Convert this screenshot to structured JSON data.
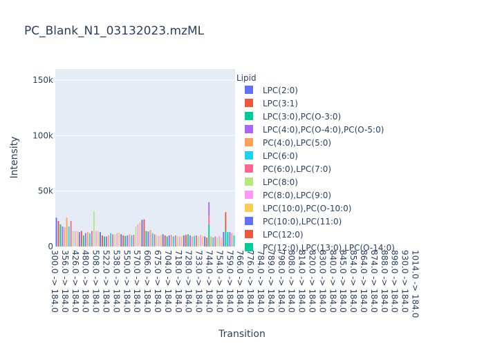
{
  "chart_data": {
    "type": "bar",
    "barmode": "stack",
    "title": "PC_Blank_N1_03132023.mzML",
    "xlabel": "Transition",
    "ylabel": "Intensity",
    "ylim": [
      0,
      160000
    ],
    "yticks": [
      {
        "value": 0,
        "label": "0"
      },
      {
        "value": 50000,
        "label": "50k"
      },
      {
        "value": 100000,
        "label": "100k"
      },
      {
        "value": 150000,
        "label": "150k"
      }
    ],
    "grid": true,
    "legend_title": "Lipid",
    "legend_position": "right",
    "xticks": [
      "300.0 -> 184.0",
      "356.0 -> 184.0",
      "426.0 -> 184.0",
      "480.0 -> 184.0",
      "508.0 -> 184.0",
      "522.0 -> 184.0",
      "538.0 -> 184.0",
      "550.0 -> 184.0",
      "570.0 -> 184.0",
      "606.0 -> 184.0",
      "675.0 -> 184.0",
      "704.0 -> 184.0",
      "718.0 -> 184.0",
      "728.0 -> 184.0",
      "733.0 -> 184.0",
      "744.0 -> 184.0",
      "754.0 -> 184.0",
      "759.0 -> 184.0",
      "766.0 -> 184.0",
      "776.0 -> 184.0",
      "784.0 -> 184.0",
      "789.0 -> 184.0",
      "798.0 -> 184.0",
      "808.0 -> 184.0",
      "814.0 -> 184.0",
      "820.0 -> 184.0",
      "830.0 -> 184.0",
      "840.0 -> 184.0",
      "845.0 -> 184.0",
      "854.0 -> 184.0",
      "864.0 -> 184.0",
      "874.0 -> 184.0",
      "888.0 -> 184.0",
      "898.0 -> 184.0",
      "930.0 -> 184.0",
      "1014.0 -> 184.0"
    ],
    "legend": [
      {
        "name": "LPC(2:0)",
        "color": "#636efa"
      },
      {
        "name": "LPC(3:1)",
        "color": "#EF553B"
      },
      {
        "name": "LPC(3:0),PC(O-3:0)",
        "color": "#00cc96"
      },
      {
        "name": "LPC(4:0),PC(O-4:0),PC(O-5:0)",
        "color": "#ab63fa"
      },
      {
        "name": "PC(4:0),LPC(5:0)",
        "color": "#FFA15A"
      },
      {
        "name": "LPC(6:0)",
        "color": "#19d3f3"
      },
      {
        "name": "PC(6:0),LPC(7:0)",
        "color": "#FF6692"
      },
      {
        "name": "LPC(8:0)",
        "color": "#B6E880"
      },
      {
        "name": "PC(8:0),LPC(9:0)",
        "color": "#FF97FF"
      },
      {
        "name": "LPC(10:0),PC(O-10:0)",
        "color": "#FECB52"
      },
      {
        "name": "PC(10:0),LPC(11:0)",
        "color": "#636efa"
      },
      {
        "name": "LPC(12:0)",
        "color": "#EF553B"
      },
      {
        "name": "PC(12:0),LPC(13:0),LPC(O-14:0)",
        "color": "#00cc96"
      }
    ],
    "palette": [
      "#636efa",
      "#EF553B",
      "#00cc96",
      "#ab63fa",
      "#FFA15A",
      "#19d3f3",
      "#FF6692",
      "#B6E880",
      "#FF97FF",
      "#FECB52"
    ],
    "bars": [
      {
        "value": 26000,
        "color": "#636efa"
      },
      {
        "value": 23000,
        "color": "#EF553B"
      },
      {
        "value": 20000,
        "color": "#00cc96"
      },
      {
        "value": 18000,
        "color": "#ab63fa"
      },
      {
        "value": 17500,
        "color": "#FFA15A"
      },
      {
        "value": 26000,
        "color": "#FFA15A"
      },
      {
        "value": 18000,
        "color": "#19d3f3"
      },
      {
        "value": 23000,
        "color": "#FF6692"
      },
      {
        "value": 14000,
        "color": "#B6E880"
      },
      {
        "value": 14000,
        "color": "#FF97FF"
      },
      {
        "value": 14000,
        "color": "#FECB52"
      },
      {
        "value": 13000,
        "color": "#636efa"
      },
      {
        "value": 14000,
        "color": "#EF553B"
      },
      {
        "value": 10000,
        "color": "#00cc96"
      },
      {
        "value": 12000,
        "color": "#ab63fa"
      },
      {
        "value": 13000,
        "color": "#FFA15A"
      },
      {
        "value": 12000,
        "color": "#19d3f3"
      },
      {
        "value": 14000,
        "color": "#FF6692"
      },
      {
        "value": 32000,
        "color": "#B6E880"
      },
      {
        "value": 14000,
        "color": "#FF97FF"
      },
      {
        "value": 14000,
        "color": "#FECB52"
      },
      {
        "value": 13000,
        "color": "#636efa"
      },
      {
        "value": 10000,
        "color": "#EF553B"
      },
      {
        "value": 9000,
        "color": "#00cc96"
      },
      {
        "value": 9000,
        "color": "#ab63fa"
      },
      {
        "value": 10000,
        "color": "#FFA15A"
      },
      {
        "value": 12000,
        "color": "#19d3f3"
      },
      {
        "value": 11000,
        "color": "#FF6692"
      },
      {
        "value": 11000,
        "color": "#B6E880"
      },
      {
        "value": 12000,
        "color": "#FF97FF"
      },
      {
        "value": 12500,
        "color": "#FECB52"
      },
      {
        "value": 11000,
        "color": "#636efa"
      },
      {
        "value": 10000,
        "color": "#EF553B"
      },
      {
        "value": 9500,
        "color": "#00cc96"
      },
      {
        "value": 10000,
        "color": "#ab63fa"
      },
      {
        "value": 11000,
        "color": "#FFA15A"
      },
      {
        "value": 10000,
        "color": "#19d3f3"
      },
      {
        "value": 10500,
        "color": "#FF6692"
      },
      {
        "value": 18000,
        "color": "#B6E880"
      },
      {
        "value": 20000,
        "color": "#FF97FF"
      },
      {
        "value": 22000,
        "color": "#FECB52"
      },
      {
        "value": 24000,
        "color": "#636efa"
      },
      {
        "value": 24500,
        "color": "#EF553B"
      },
      {
        "value": 14000,
        "color": "#00cc96"
      },
      {
        "value": 13500,
        "color": "#ab63fa"
      },
      {
        "value": 15000,
        "color": "#FFA15A"
      },
      {
        "value": 12000,
        "color": "#19d3f3"
      },
      {
        "value": 11000,
        "color": "#FF6692"
      },
      {
        "value": 10000,
        "color": "#B6E880"
      },
      {
        "value": 9500,
        "color": "#FF97FF"
      },
      {
        "value": 10500,
        "color": "#FECB52"
      },
      {
        "value": 11000,
        "color": "#636efa"
      },
      {
        "value": 10000,
        "color": "#EF553B"
      },
      {
        "value": 9000,
        "color": "#00cc96"
      },
      {
        "value": 10000,
        "color": "#ab63fa"
      },
      {
        "value": 10500,
        "color": "#FFA15A"
      },
      {
        "value": 9000,
        "color": "#19d3f3"
      },
      {
        "value": 10000,
        "color": "#FF6692"
      },
      {
        "value": 9500,
        "color": "#B6E880"
      },
      {
        "value": 9000,
        "color": "#FF97FF"
      },
      {
        "value": 9500,
        "color": "#FECB52"
      },
      {
        "value": 10000,
        "color": "#636efa"
      },
      {
        "value": 10500,
        "color": "#EF553B"
      },
      {
        "value": 11000,
        "color": "#00cc96"
      },
      {
        "value": 10000,
        "color": "#ab63fa"
      },
      {
        "value": 9000,
        "color": "#FFA15A"
      },
      {
        "value": 9500,
        "color": "#19d3f3"
      },
      {
        "value": 10000,
        "color": "#FF6692"
      },
      {
        "value": 9000,
        "color": "#B6E880"
      },
      {
        "value": 10500,
        "color": "#FF97FF"
      },
      {
        "value": 9500,
        "color": "#FECB52"
      },
      {
        "value": 9000,
        "color": "#636efa"
      },
      {
        "value": 8000,
        "color": "#EF553B"
      },
      {
        "value": 40000,
        "color": "#ab63fa",
        "stack": [
          {
            "value": 20000,
            "color": "#00cc96"
          },
          {
            "value": 8000,
            "color": "#FF6692"
          },
          {
            "value": 12000,
            "color": "#ab63fa"
          }
        ]
      },
      {
        "value": 9000,
        "color": "#FFA15A"
      },
      {
        "value": 8000,
        "color": "#19d3f3"
      },
      {
        "value": 9000,
        "color": "#FF6692"
      },
      {
        "value": 8500,
        "color": "#B6E880"
      },
      {
        "value": 9500,
        "color": "#FF97FF"
      },
      {
        "value": 8000,
        "color": "#FECB52"
      },
      {
        "value": 13000,
        "color": "#636efa"
      },
      {
        "value": 31000,
        "color": "#EF553B",
        "stack": [
          {
            "value": 14000,
            "color": "#00cc96"
          },
          {
            "value": 17000,
            "color": "#EF553B"
          }
        ]
      },
      {
        "value": 13000,
        "color": "#00cc96"
      },
      {
        "value": 13000,
        "color": "#ab63fa"
      },
      {
        "value": 12000,
        "color": "#FFA15A"
      },
      {
        "value": 10000,
        "color": "#19d3f3"
      }
    ]
  }
}
